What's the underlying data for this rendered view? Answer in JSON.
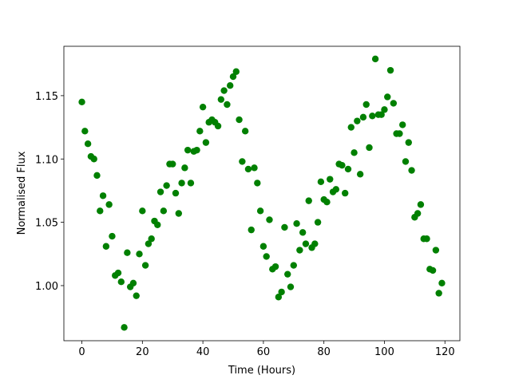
{
  "chart_data": {
    "type": "scatter",
    "xlabel": "Time (Hours)",
    "ylabel": "Normalised Flux",
    "color": "#008000",
    "x": [
      0,
      1,
      2,
      3,
      4,
      5,
      6,
      7,
      8,
      9,
      10,
      11,
      12,
      13,
      14,
      15,
      16,
      17,
      18,
      19,
      20,
      21,
      22,
      23,
      24,
      25,
      26,
      27,
      28,
      29,
      30,
      31,
      32,
      33,
      34,
      35,
      36,
      37,
      38,
      39,
      40,
      41,
      42,
      43,
      44,
      45,
      46,
      47,
      48,
      49,
      50,
      51,
      52,
      53,
      54,
      55,
      56,
      57,
      58,
      59,
      60,
      61,
      62,
      63,
      64,
      65,
      66,
      67,
      68,
      69,
      70,
      71,
      72,
      73,
      74,
      75,
      76,
      77,
      78,
      79,
      80,
      81,
      82,
      83,
      84,
      85,
      86,
      87,
      88,
      89,
      90,
      91,
      92,
      93,
      94,
      95,
      96,
      97,
      98,
      99,
      100,
      101,
      102,
      103,
      104,
      105,
      106,
      107,
      108,
      109,
      110,
      111,
      112,
      113,
      114,
      115,
      116,
      117,
      118,
      119
    ],
    "values": [
      1.145,
      1.122,
      1.112,
      1.102,
      1.1,
      1.087,
      1.059,
      1.071,
      1.031,
      1.064,
      1.039,
      1.008,
      1.01,
      1.003,
      0.967,
      1.026,
      0.999,
      1.002,
      0.992,
      1.025,
      1.059,
      1.016,
      1.033,
      1.037,
      1.051,
      1.048,
      1.074,
      1.059,
      1.079,
      1.096,
      1.096,
      1.073,
      1.057,
      1.081,
      1.093,
      1.107,
      1.081,
      1.106,
      1.107,
      1.122,
      1.141,
      1.113,
      1.129,
      1.131,
      1.129,
      1.126,
      1.147,
      1.154,
      1.143,
      1.158,
      1.165,
      1.169,
      1.131,
      1.098,
      1.122,
      1.092,
      1.044,
      1.093,
      1.081,
      1.059,
      1.031,
      1.023,
      1.052,
      1.013,
      1.015,
      0.991,
      0.995,
      1.046,
      1.009,
      0.999,
      1.016,
      1.049,
      1.028,
      1.042,
      1.033,
      1.067,
      1.03,
      1.033,
      1.05,
      1.082,
      1.068,
      1.066,
      1.084,
      1.074,
      1.076,
      1.096,
      1.095,
      1.073,
      1.092,
      1.125,
      1.105,
      1.13,
      1.088,
      1.133,
      1.143,
      1.109,
      1.134,
      1.179,
      1.135,
      1.135,
      1.139,
      1.149,
      1.17,
      1.144,
      1.12,
      1.12,
      1.127,
      1.098,
      1.113,
      1.091,
      1.054,
      1.057,
      1.064,
      1.037,
      1.037,
      1.013,
      1.012,
      1.028,
      0.994,
      1.002
    ],
    "xlim": [
      -5.95,
      124.95
    ],
    "ylim": [
      0.9565,
      1.189
    ],
    "xticks": [
      0,
      20,
      40,
      60,
      80,
      100,
      120
    ],
    "yticks": [
      {
        "value": 1,
        "label": "1.00"
      },
      1.05,
      {
        "value": 1.1,
        "label": "1.10"
      },
      1.15
    ]
  }
}
